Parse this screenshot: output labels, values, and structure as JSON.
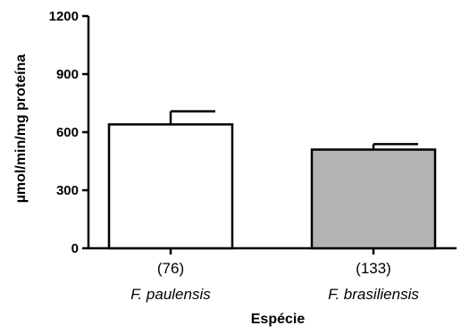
{
  "chart_data": {
    "type": "bar",
    "categories": [
      "F. paulensis",
      "F. brasiliensis"
    ],
    "sample_sizes": [
      "(76)",
      "(133)"
    ],
    "values": [
      640,
      510
    ],
    "errors": [
      68,
      28
    ],
    "bar_colors": [
      "#ffffff",
      "#b3b3b3"
    ],
    "xlabel": "Espécie",
    "ylabel": "µmol/min/mg proteína",
    "ylim": [
      0,
      1200
    ],
    "yticks": [
      "0",
      "300",
      "600",
      "900",
      "1200"
    ],
    "grid": false
  }
}
